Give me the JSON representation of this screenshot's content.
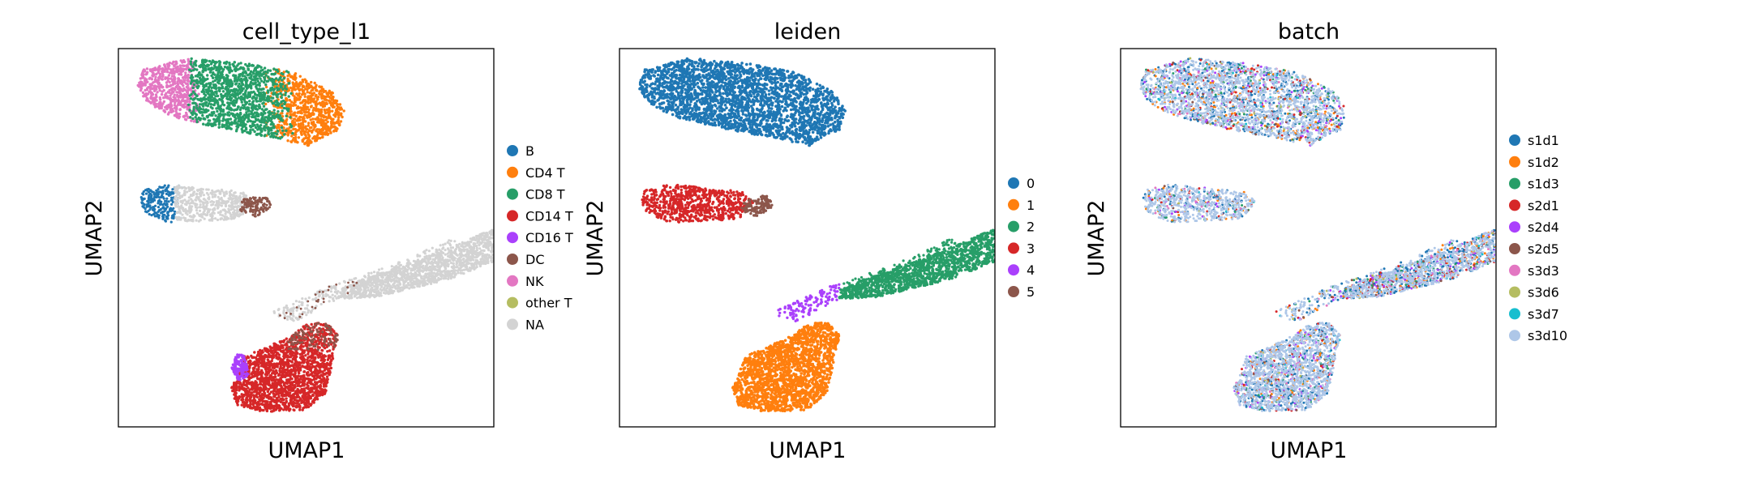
{
  "chart_data": [
    {
      "type": "scatter",
      "title": "cell_type_l1",
      "xlabel": "UMAP1",
      "ylabel": "UMAP2",
      "grid": false,
      "legend_position": "right",
      "legend": [
        {
          "label": "B",
          "color": "#1f77b4"
        },
        {
          "label": "CD4 T",
          "color": "#ff7f0e"
        },
        {
          "label": "CD8 T",
          "color": "#279e68"
        },
        {
          "label": "CD14 T",
          "color": "#d62728"
        },
        {
          "label": "CD16 T",
          "color": "#aa40fc"
        },
        {
          "label": "DC",
          "color": "#8c564b"
        },
        {
          "label": "NK",
          "color": "#e377c2"
        },
        {
          "label": "other T",
          "color": "#b5bd61"
        },
        {
          "label": "NA",
          "color": "#d3d3d3"
        }
      ]
    },
    {
      "type": "scatter",
      "title": "leiden",
      "xlabel": "UMAP1",
      "ylabel": "UMAP2",
      "grid": false,
      "legend_position": "right",
      "legend": [
        {
          "label": "0",
          "color": "#1f77b4"
        },
        {
          "label": "1",
          "color": "#ff7f0e"
        },
        {
          "label": "2",
          "color": "#279e68"
        },
        {
          "label": "3",
          "color": "#d62728"
        },
        {
          "label": "4",
          "color": "#aa40fc"
        },
        {
          "label": "5",
          "color": "#8c564b"
        }
      ]
    },
    {
      "type": "scatter",
      "title": "batch",
      "xlabel": "UMAP1",
      "ylabel": "UMAP2",
      "grid": false,
      "legend_position": "right",
      "legend": [
        {
          "label": "s1d1",
          "color": "#1f77b4"
        },
        {
          "label": "s1d2",
          "color": "#ff7f0e"
        },
        {
          "label": "s1d3",
          "color": "#279e68"
        },
        {
          "label": "s2d1",
          "color": "#d62728"
        },
        {
          "label": "s2d4",
          "color": "#aa40fc"
        },
        {
          "label": "s2d5",
          "color": "#8c564b"
        },
        {
          "label": "s3d3",
          "color": "#e377c2"
        },
        {
          "label": "s3d6",
          "color": "#b5bd61"
        },
        {
          "label": "s3d7",
          "color": "#17becf"
        },
        {
          "label": "s3d10",
          "color": "#aec7e8"
        }
      ]
    }
  ]
}
